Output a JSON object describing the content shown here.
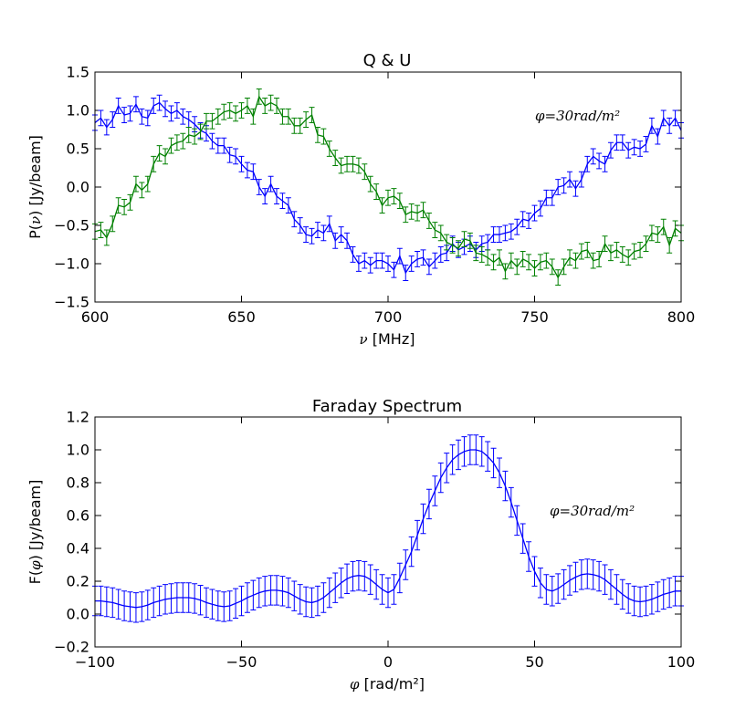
{
  "chart_data": [
    {
      "type": "line",
      "title": "Q & U",
      "xlabel_symbol": "ν",
      "xlabel_unit": " [MHz]",
      "ylabel_prefix": "P(",
      "ylabel_symbol": "ν",
      "ylabel_suffix": ") [Jy/beam]",
      "annotation": "φ=30rad/m²",
      "xlim": [
        600,
        800
      ],
      "ylim": [
        -1.5,
        1.5
      ],
      "x_ticks": [
        600,
        650,
        700,
        750,
        800
      ],
      "x_tick_labels": [
        "600",
        "650",
        "700",
        "750",
        "800"
      ],
      "y_ticks": [
        -1.5,
        -1.0,
        -0.5,
        0.0,
        0.5,
        1.0,
        1.5
      ],
      "y_tick_labels": [
        "−1.5",
        "−1.0",
        "−0.5",
        "0.0",
        "0.5",
        "1.0",
        "1.5"
      ],
      "error": 0.1,
      "x": [
        600,
        602,
        604,
        606,
        608,
        610,
        612,
        614,
        616,
        618,
        620,
        622,
        624,
        626,
        628,
        630,
        632,
        634,
        636,
        638,
        640,
        642,
        644,
        646,
        648,
        650,
        652,
        654,
        656,
        658,
        660,
        662,
        664,
        666,
        668,
        670,
        672,
        674,
        676,
        678,
        680,
        682,
        684,
        686,
        688,
        690,
        692,
        694,
        696,
        698,
        700,
        702,
        704,
        706,
        708,
        710,
        712,
        714,
        716,
        718,
        720,
        722,
        724,
        726,
        728,
        730,
        732,
        734,
        736,
        738,
        740,
        742,
        744,
        746,
        748,
        750,
        752,
        754,
        756,
        758,
        760,
        762,
        764,
        766,
        768,
        770,
        772,
        774,
        776,
        778,
        780,
        782,
        784,
        786,
        788,
        790,
        792,
        794,
        796,
        798,
        800
      ],
      "series": [
        {
          "color": "#0000ff",
          "values": [
            0.84,
            0.9,
            0.78,
            0.88,
            1.06,
            0.94,
            0.96,
            1.08,
            0.92,
            0.9,
            1.06,
            1.1,
            1.02,
            0.96,
            1.0,
            0.92,
            0.88,
            0.82,
            0.74,
            0.7,
            0.6,
            0.54,
            0.54,
            0.42,
            0.4,
            0.3,
            0.22,
            0.2,
            0.0,
            -0.12,
            0.04,
            -0.12,
            -0.18,
            -0.24,
            -0.42,
            -0.5,
            -0.62,
            -0.64,
            -0.56,
            -0.6,
            -0.48,
            -0.7,
            -0.62,
            -0.7,
            -0.88,
            -1.0,
            -0.96,
            -1.02,
            -0.96,
            -0.96,
            -1.0,
            -1.08,
            -0.9,
            -1.12,
            -1.0,
            -0.94,
            -0.92,
            -1.04,
            -0.96,
            -0.88,
            -0.86,
            -0.74,
            -0.82,
            -0.78,
            -0.74,
            -0.82,
            -0.74,
            -0.72,
            -0.62,
            -0.62,
            -0.6,
            -0.58,
            -0.52,
            -0.42,
            -0.44,
            -0.34,
            -0.28,
            -0.14,
            -0.14,
            0.0,
            0.02,
            0.1,
            -0.02,
            0.1,
            0.3,
            0.4,
            0.34,
            0.3,
            0.48,
            0.58,
            0.58,
            0.48,
            0.52,
            0.5,
            0.56,
            0.8,
            0.66,
            0.9,
            0.8,
            0.9,
            0.74
          ]
        },
        {
          "color": "#008000",
          "values": [
            -0.58,
            -0.56,
            -0.66,
            -0.48,
            -0.24,
            -0.26,
            -0.2,
            0.04,
            -0.04,
            0.04,
            0.3,
            0.44,
            0.4,
            0.54,
            0.58,
            0.6,
            0.68,
            0.66,
            0.72,
            0.86,
            0.86,
            0.92,
            0.98,
            1.0,
            0.96,
            1.0,
            1.06,
            0.92,
            1.18,
            1.06,
            1.1,
            1.06,
            0.92,
            0.92,
            0.8,
            0.8,
            0.88,
            0.94,
            0.68,
            0.66,
            0.5,
            0.38,
            0.28,
            0.3,
            0.3,
            0.28,
            0.2,
            0.04,
            -0.06,
            -0.24,
            -0.14,
            -0.12,
            -0.18,
            -0.36,
            -0.32,
            -0.34,
            -0.3,
            -0.44,
            -0.56,
            -0.6,
            -0.72,
            -0.76,
            -0.8,
            -0.68,
            -0.7,
            -0.86,
            -0.88,
            -0.92,
            -0.98,
            -0.92,
            -1.1,
            -0.96,
            -1.04,
            -0.94,
            -0.98,
            -1.06,
            -0.98,
            -0.96,
            -1.04,
            -1.18,
            -1.04,
            -0.92,
            -0.96,
            -0.84,
            -0.82,
            -0.96,
            -0.94,
            -0.74,
            -0.86,
            -0.82,
            -0.88,
            -0.92,
            -0.84,
            -0.82,
            -0.74,
            -0.6,
            -0.62,
            -0.52,
            -0.76,
            -0.54,
            -0.6
          ]
        }
      ]
    },
    {
      "type": "line",
      "title": "Faraday Spectrum",
      "xlabel_symbol": "φ",
      "xlabel_unit": " [rad/m²]",
      "ylabel_prefix": "F(",
      "ylabel_symbol": "φ",
      "ylabel_suffix": ") [Jy/beam]",
      "annotation": "φ=30rad/m²",
      "xlim": [
        -100,
        100
      ],
      "ylim": [
        -0.2,
        1.2
      ],
      "x_ticks": [
        -100,
        -50,
        0,
        50,
        100
      ],
      "x_tick_labels": [
        "−100",
        "−50",
        "0",
        "50",
        "100"
      ],
      "y_ticks": [
        -0.2,
        0.0,
        0.2,
        0.4,
        0.6,
        0.8,
        1.0,
        1.2
      ],
      "y_tick_labels": [
        "−0.2",
        "0.0",
        "0.2",
        "0.4",
        "0.6",
        "0.8",
        "1.0",
        "1.2"
      ],
      "error": 0.09,
      "x": [
        -100,
        -98,
        -96,
        -94,
        -92,
        -90,
        -88,
        -86,
        -84,
        -82,
        -80,
        -78,
        -76,
        -74,
        -72,
        -70,
        -68,
        -66,
        -64,
        -62,
        -60,
        -58,
        -56,
        -54,
        -52,
        -50,
        -48,
        -46,
        -44,
        -42,
        -40,
        -38,
        -36,
        -34,
        -32,
        -30,
        -28,
        -26,
        -24,
        -22,
        -20,
        -18,
        -16,
        -14,
        -12,
        -10,
        -8,
        -6,
        -4,
        -2,
        0,
        2,
        4,
        6,
        8,
        10,
        12,
        14,
        16,
        18,
        20,
        22,
        24,
        26,
        28,
        30,
        32,
        34,
        36,
        38,
        40,
        42,
        44,
        46,
        48,
        50,
        52,
        54,
        56,
        58,
        60,
        62,
        64,
        66,
        68,
        70,
        72,
        74,
        76,
        78,
        80,
        82,
        84,
        86,
        88,
        90,
        92,
        94,
        96,
        98,
        100
      ],
      "series": [
        {
          "color": "#0000ff",
          "values": [
            0.08,
            0.08,
            0.075,
            0.07,
            0.06,
            0.05,
            0.045,
            0.04,
            0.045,
            0.055,
            0.07,
            0.08,
            0.09,
            0.095,
            0.1,
            0.1,
            0.1,
            0.095,
            0.085,
            0.07,
            0.06,
            0.05,
            0.045,
            0.05,
            0.065,
            0.08,
            0.1,
            0.115,
            0.13,
            0.14,
            0.145,
            0.145,
            0.14,
            0.13,
            0.11,
            0.09,
            0.075,
            0.07,
            0.08,
            0.1,
            0.13,
            0.16,
            0.19,
            0.215,
            0.23,
            0.235,
            0.23,
            0.21,
            0.18,
            0.15,
            0.13,
            0.15,
            0.22,
            0.3,
            0.38,
            0.48,
            0.58,
            0.67,
            0.75,
            0.83,
            0.89,
            0.94,
            0.97,
            0.99,
            1.0,
            1.0,
            0.99,
            0.96,
            0.92,
            0.86,
            0.78,
            0.68,
            0.57,
            0.46,
            0.35,
            0.26,
            0.19,
            0.15,
            0.14,
            0.155,
            0.18,
            0.205,
            0.225,
            0.24,
            0.245,
            0.24,
            0.23,
            0.21,
            0.18,
            0.15,
            0.12,
            0.095,
            0.08,
            0.075,
            0.08,
            0.09,
            0.105,
            0.12,
            0.13,
            0.14,
            0.14
          ]
        }
      ]
    }
  ]
}
